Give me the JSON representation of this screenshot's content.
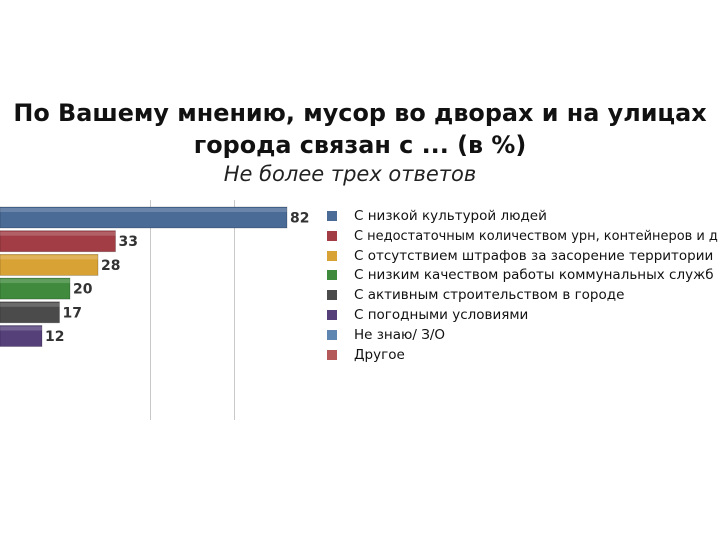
{
  "title_line1": "По Вашему мнению, мусор во дворах и на улицах",
  "title_line2": "города связан с ... (в %)",
  "subtitle": "Не более трех ответов",
  "chart_data": {
    "type": "bar",
    "orientation": "horizontal",
    "categories": [
      "С низкой культурой людей",
      "С недостаточным количеством урн, контейнеров и д",
      "С отсутствием штрафов за засорение территории",
      "С низким качеством работы коммунальных служб",
      "С активным строительством в городе",
      "С погодными условиями",
      "Не знаю/ З/О",
      "Другое"
    ],
    "values": [
      82,
      33,
      28,
      20,
      17,
      12,
      0,
      0
    ],
    "colors": [
      "#4a6b96",
      "#a23d45",
      "#d9a235",
      "#3f8a3c",
      "#4b4b4b",
      "#55407a",
      "#5f86b0",
      "#b55a5a"
    ],
    "value_labels": [
      "82",
      "33",
      "28",
      "20",
      "17",
      "12",
      "",
      ""
    ],
    "legend_position": "right",
    "grid": true
  }
}
